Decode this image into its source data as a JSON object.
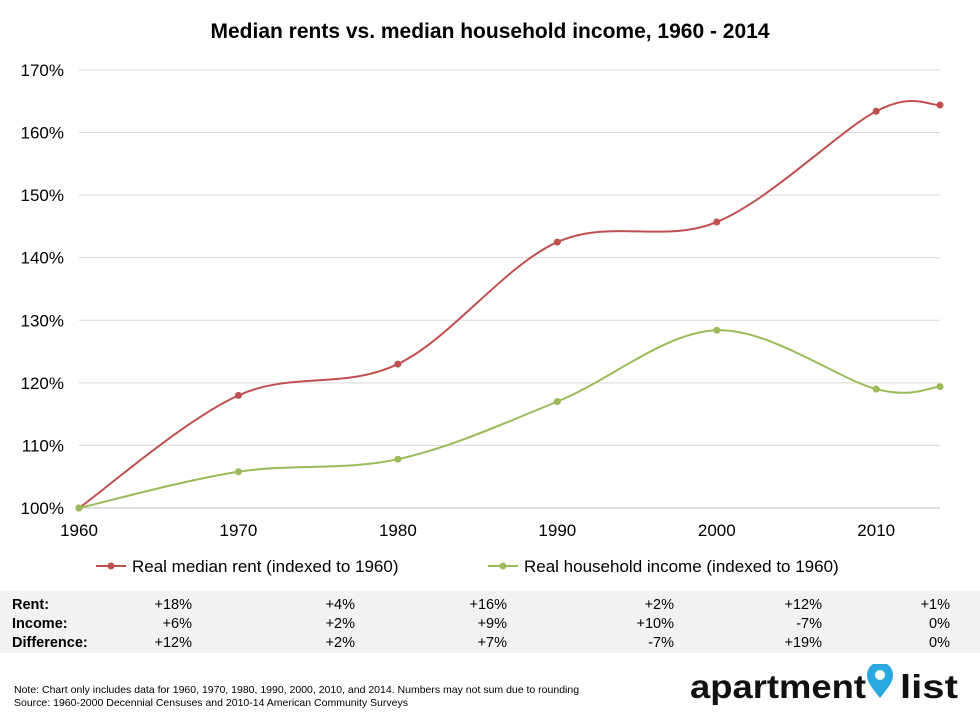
{
  "chart_data": {
    "type": "line",
    "title": "Median rents vs. median household income, 1960 - 2014",
    "xlabel": "",
    "ylabel": "",
    "x": [
      1960,
      1970,
      1980,
      1990,
      2000,
      2010,
      2014
    ],
    "xlim": [
      1960,
      2014
    ],
    "xticks": [
      "1960",
      "1970",
      "1980",
      "1990",
      "2000",
      "2010"
    ],
    "ylim": [
      100,
      170
    ],
    "yticks": [
      "100%",
      "110%",
      "120%",
      "130%",
      "140%",
      "150%",
      "160%",
      "170%"
    ],
    "grid": true,
    "legend_position": "bottom",
    "series": [
      {
        "name": "Real median rent (indexed to 1960)",
        "color": "#c0504d",
        "values": [
          100,
          118,
          123,
          142.5,
          145.7,
          163.4,
          164.4
        ]
      },
      {
        "name": "Real household income (indexed to 1960)",
        "color": "#9bbb59",
        "values": [
          100,
          105.8,
          107.8,
          117,
          128.4,
          119,
          119.4
        ]
      }
    ]
  },
  "table": {
    "rows": [
      {
        "label": "Rent:",
        "cells": [
          "+18%",
          "+4%",
          "+16%",
          "+2%",
          "+12%",
          "+1%"
        ]
      },
      {
        "label": "Income:",
        "cells": [
          "+6%",
          "+2%",
          "+9%",
          "+10%",
          "-7%",
          "0%"
        ]
      },
      {
        "label": "Difference:",
        "cells": [
          "+12%",
          "+2%",
          "+7%",
          "-7%",
          "+19%",
          "0%"
        ]
      }
    ]
  },
  "footnotes": {
    "note": "Note: Chart only includes data for 1960, 1970, 1980, 1990, 2000, 2010, and 2014. Numbers may not sum due to rounding",
    "source": "Source: 1960-2000 Decennial Censuses and 2010-14 American Community Surveys"
  },
  "logo": {
    "left_word": "apartment",
    "right_word": "list",
    "pin_color": "#29a9e0"
  }
}
